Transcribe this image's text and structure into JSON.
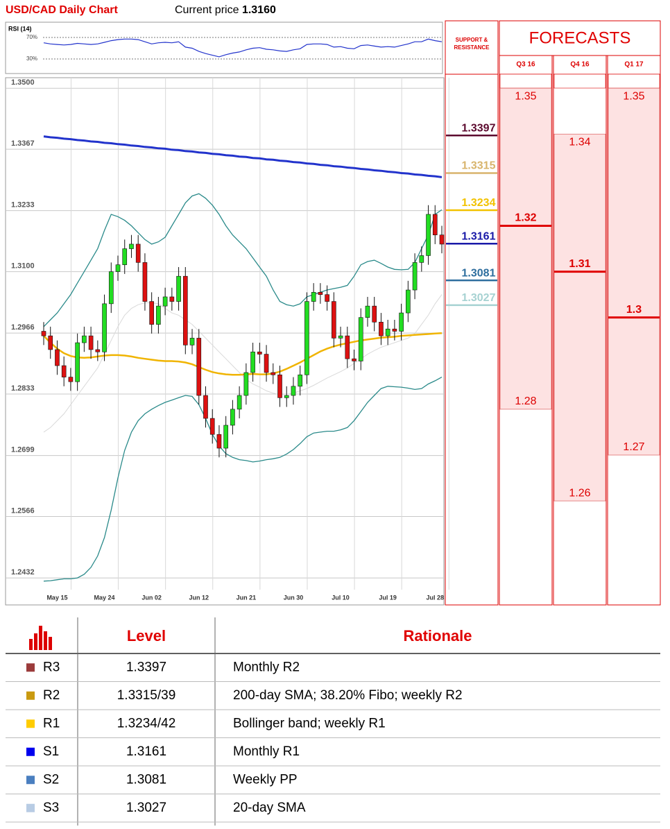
{
  "chart_data": [
    {
      "type": "candlestick",
      "title": "USD/CAD Daily Chart",
      "current_price_label": "Current price",
      "current_price": {
        "value": 1.316,
        "label": "1.3160"
      },
      "categories": [
        null,
        null,
        "May 15",
        null,
        null,
        null,
        null,
        null,
        null,
        "May 24",
        null,
        null,
        null,
        null,
        null,
        null,
        "Jun 02",
        null,
        null,
        null,
        null,
        null,
        null,
        "Jun 12",
        null,
        null,
        null,
        null,
        null,
        null,
        "Jun 21",
        null,
        null,
        null,
        null,
        null,
        null,
        "Jun 30",
        null,
        null,
        null,
        null,
        null,
        null,
        "Jul 10",
        null,
        null,
        null,
        null,
        null,
        null,
        "Jul 19",
        null,
        null,
        null,
        null,
        null,
        null,
        "Jul 28",
        null
      ],
      "open": [
        1.297,
        1.296,
        1.293,
        1.2895,
        1.287,
        1.286,
        1.2945,
        1.296,
        1.293,
        1.2925,
        1.303,
        1.31,
        1.3115,
        1.315,
        1.316,
        1.312,
        1.3035,
        1.2985,
        1.3025,
        1.3045,
        1.3035,
        1.309,
        1.294,
        1.2955,
        1.283,
        1.278,
        1.2745,
        1.2715,
        1.2765,
        1.28,
        1.283,
        1.288,
        1.2925,
        1.292,
        1.288,
        1.2875,
        1.2825,
        1.283,
        1.285,
        1.2875,
        1.3035,
        1.3055,
        1.305,
        1.3035,
        1.2955,
        1.296,
        1.291,
        1.2905,
        1.3,
        1.3025,
        1.299,
        1.296,
        1.2975,
        1.297,
        1.301,
        1.306,
        1.312,
        1.3135,
        1.3225,
        1.318
      ],
      "high": [
        1.299,
        1.298,
        1.295,
        1.2915,
        1.289,
        1.2965,
        1.298,
        1.298,
        1.295,
        1.305,
        1.312,
        1.3135,
        1.317,
        1.318,
        1.318,
        1.314,
        1.3055,
        1.3045,
        1.3065,
        1.3065,
        1.311,
        1.311,
        1.2975,
        1.2975,
        1.285,
        1.28,
        1.2765,
        1.2785,
        1.282,
        1.285,
        1.29,
        1.2945,
        1.2945,
        1.294,
        1.29,
        1.2895,
        1.285,
        1.287,
        1.2895,
        1.3055,
        1.3075,
        1.3075,
        1.307,
        1.3055,
        1.298,
        1.298,
        1.293,
        1.302,
        1.3045,
        1.3045,
        1.301,
        1.2995,
        1.2995,
        1.303,
        1.308,
        1.314,
        1.3155,
        1.3245,
        1.3245,
        1.32
      ],
      "low": [
        1.294,
        1.291,
        1.2875,
        1.285,
        1.284,
        1.284,
        1.2925,
        1.291,
        1.2905,
        1.2905,
        1.301,
        1.308,
        1.3095,
        1.313,
        1.31,
        1.3015,
        1.2965,
        1.2965,
        1.3005,
        1.3015,
        1.3015,
        1.292,
        1.292,
        1.281,
        1.276,
        1.2725,
        1.2695,
        1.2695,
        1.2745,
        1.278,
        1.281,
        1.286,
        1.29,
        1.286,
        1.2855,
        1.2805,
        1.2805,
        1.281,
        1.283,
        1.2855,
        1.3015,
        1.303,
        1.3015,
        1.2935,
        1.2935,
        1.289,
        1.2885,
        1.2885,
        1.298,
        1.297,
        1.294,
        1.294,
        1.295,
        1.295,
        1.299,
        1.304,
        1.31,
        1.3115,
        1.316,
        1.314
      ],
      "close": [
        1.296,
        1.293,
        1.2895,
        1.287,
        1.286,
        1.2945,
        1.296,
        1.293,
        1.2925,
        1.303,
        1.31,
        1.3115,
        1.315,
        1.316,
        1.312,
        1.3035,
        1.2985,
        1.3025,
        1.3045,
        1.3035,
        1.309,
        1.294,
        1.2955,
        1.283,
        1.278,
        1.2745,
        1.2715,
        1.2765,
        1.28,
        1.283,
        1.288,
        1.2925,
        1.292,
        1.288,
        1.2875,
        1.2825,
        1.283,
        1.285,
        1.2875,
        1.3035,
        1.3055,
        1.305,
        1.3035,
        1.2955,
        1.296,
        1.291,
        1.2905,
        1.3,
        1.3025,
        1.299,
        1.296,
        1.2975,
        1.297,
        1.301,
        1.306,
        1.312,
        1.3135,
        1.3225,
        1.318,
        1.316
      ],
      "up_color": "#22dd22",
      "down_color": "#dd1111",
      "lines": [
        {
          "color": "#d9d9d9",
          "values": [
            1.275,
            1.276,
            1.2775,
            1.279,
            1.281,
            1.283,
            1.285,
            1.287,
            1.289,
            1.292,
            1.295,
            1.298,
            1.3005,
            1.302,
            1.3028,
            1.3032,
            1.3032,
            1.303,
            1.302,
            1.301,
            1.3005,
            1.2995,
            1.2985,
            1.297,
            1.2955,
            1.294,
            1.2925,
            1.291,
            1.2895,
            1.288,
            1.2865,
            1.2855,
            1.2848,
            1.284,
            1.2835,
            1.2832,
            1.2833,
            1.2835,
            1.284,
            1.2845,
            1.2852,
            1.286,
            1.2868,
            1.2875,
            1.2882,
            1.289,
            1.29,
            1.291,
            1.292,
            1.2928,
            1.2935,
            1.294,
            1.2945,
            1.295,
            1.2955,
            1.2965,
            1.2985,
            1.3005,
            1.303,
            1.305
          ]
        },
        {
          "color": "#2a8a8a",
          "values": [
            1.298,
            1.2995,
            1.301,
            1.303,
            1.305,
            1.3075,
            1.31,
            1.3125,
            1.315,
            1.319,
            1.3225,
            1.322,
            1.3212,
            1.32,
            1.3185,
            1.317,
            1.316,
            1.3165,
            1.3175,
            1.32,
            1.3225,
            1.325,
            1.3265,
            1.327,
            1.326,
            1.3245,
            1.3225,
            1.32,
            1.318,
            1.3165,
            1.315,
            1.313,
            1.311,
            1.309,
            1.306,
            1.3035,
            1.3028,
            1.3025,
            1.303,
            1.3045,
            1.305,
            1.3055,
            1.306,
            1.3063,
            1.3066,
            1.307,
            1.309,
            1.3115,
            1.3122,
            1.3125,
            1.3118,
            1.311,
            1.3105,
            1.3104,
            1.3105,
            1.312,
            1.315,
            1.318,
            1.3225,
            1.3235
          ]
        },
        {
          "color": "#2a8a8a",
          "values": [
            1.2425,
            1.2426,
            1.2428,
            1.243,
            1.243,
            1.2432,
            1.244,
            1.2455,
            1.248,
            1.252,
            1.258,
            1.265,
            1.271,
            1.275,
            1.2775,
            1.279,
            1.28,
            1.2808,
            1.2815,
            1.282,
            1.2825,
            1.283,
            1.2828,
            1.281,
            1.278,
            1.2745,
            1.272,
            1.2703,
            1.2695,
            1.269,
            1.2688,
            1.2685,
            1.2687,
            1.269,
            1.2692,
            1.2695,
            1.2702,
            1.2712,
            1.2725,
            1.274,
            1.2748,
            1.275,
            1.2752,
            1.2752,
            1.2755,
            1.276,
            1.2775,
            1.2795,
            1.2815,
            1.283,
            1.2845,
            1.285,
            1.2849,
            1.2848,
            1.2846,
            1.2843,
            1.2845,
            1.2855,
            1.2862,
            1.287
          ]
        },
        {
          "color": "#2233cc",
          "values": [
            1.3395,
            1.3393,
            1.3392,
            1.339,
            1.3389,
            1.3387,
            1.3386,
            1.3384,
            1.3383,
            1.3381,
            1.338,
            1.3378,
            1.3377,
            1.3375,
            1.3374,
            1.3372,
            1.3371,
            1.3369,
            1.3368,
            1.3366,
            1.3365,
            1.3363,
            1.3362,
            1.336,
            1.3359,
            1.3357,
            1.3356,
            1.3354,
            1.3353,
            1.3351,
            1.335,
            1.3348,
            1.3347,
            1.3345,
            1.3344,
            1.3342,
            1.3341,
            1.3339,
            1.3338,
            1.3336,
            1.3335,
            1.3333,
            1.3332,
            1.333,
            1.3329,
            1.3327,
            1.3326,
            1.3324,
            1.3323,
            1.3321,
            1.332,
            1.3318,
            1.3317,
            1.3315,
            1.3314,
            1.3312,
            1.3311,
            1.3309,
            1.3308,
            1.3306
          ]
        },
        {
          "color": "#f0b400",
          "values": [
            1.296,
            1.2945,
            1.2932,
            1.2922,
            1.2916,
            1.2913,
            1.2912,
            1.2913,
            1.2915,
            1.2917,
            1.2918,
            1.2918,
            1.2917,
            1.2915,
            1.2912,
            1.291,
            1.2908,
            1.2906,
            1.2905,
            1.2905,
            1.2904,
            1.2902,
            1.2898,
            1.2892,
            1.2886,
            1.2881,
            1.2878,
            1.2876,
            1.2875,
            1.2875,
            1.2876,
            1.2877,
            1.2876,
            1.2876,
            1.2878,
            1.2882,
            1.2888,
            1.2895,
            1.2902,
            1.291,
            1.2918,
            1.2926,
            1.2932,
            1.2937,
            1.2941,
            1.2944,
            1.2947,
            1.295,
            1.2952,
            1.2954,
            1.2956,
            1.2957,
            1.2958,
            1.296,
            1.2961,
            1.2962,
            1.2963,
            1.2964,
            1.2965,
            1.2966
          ]
        }
      ],
      "ylim": [
        1.2414,
        1.3523
      ],
      "yticks": [
        {
          "value": 1.35,
          "label": "1.3500"
        },
        1.3367,
        1.3233,
        {
          "value": 1.31,
          "label": "1.3100"
        },
        1.2966,
        1.2833,
        1.2699,
        1.2566,
        1.2432
      ],
      "grid": true,
      "levels_title": "SUPPORT & RESISTANCE",
      "levels": [
        {
          "value": 1.3397,
          "color": "#5c0a2e"
        },
        {
          "value": 1.3315,
          "color": "#d8b46c"
        },
        {
          "value": 1.3234,
          "color": "#f2c200"
        },
        {
          "value": 1.3161,
          "color": "#1a1aa8"
        },
        {
          "value": 1.3081,
          "color": "#2e6e9e"
        },
        {
          "value": 1.3027,
          "color": "#a6d2d2"
        }
      ],
      "forecasts": {
        "title": "FORECASTS",
        "columns": [
          {
            "name": "Q3 16",
            "high": 1.35,
            "mid": 1.32,
            "low": 1.28
          },
          {
            "name": "Q4 16",
            "high": 1.34,
            "mid": 1.31,
            "low": 1.26
          },
          {
            "name": "Q1 17",
            "high": 1.35,
            "mid": 1.3,
            "low": 1.27
          }
        ]
      }
    },
    {
      "type": "line",
      "title": "RSI (14)",
      "color": "#2233cc",
      "values": [
        60,
        58,
        57,
        56,
        57,
        59,
        58,
        57,
        58,
        61,
        64,
        66,
        67,
        67,
        66,
        62,
        58,
        60,
        61,
        60,
        62,
        52,
        50,
        44,
        40,
        37,
        34,
        38,
        41,
        43,
        47,
        50,
        51,
        48,
        47,
        45,
        44,
        47,
        49,
        57,
        58,
        58,
        57,
        52,
        53,
        50,
        49,
        55,
        56,
        54,
        52,
        53,
        52,
        55,
        58,
        62,
        62,
        67,
        64,
        62
      ],
      "ylim": [
        15,
        90
      ],
      "yticks": [
        {
          "value": 70,
          "label": "70%"
        },
        {
          "value": 30,
          "label": "30%"
        }
      ]
    }
  ],
  "table": {
    "header": [
      "Level",
      "Rationale"
    ],
    "rows": [
      {
        "name": "R3",
        "level": "1.3397",
        "rationale": "Monthly R2",
        "color": "#9b3b3b"
      },
      {
        "name": "R2",
        "level": "1.3315/39",
        "rationale": "200-day SMA; 38.20% Fibo; weekly R2",
        "color": "#c99a10"
      },
      {
        "name": "R1",
        "level": "1.3234/42",
        "rationale": "Bollinger band; weekly R1",
        "color": "#ffcc00"
      },
      {
        "name": "S1",
        "level": "1.3161",
        "rationale": "Monthly R1",
        "color": "#0000ee"
      },
      {
        "name": "S2",
        "level": "1.3081",
        "rationale": "Weekly PP",
        "color": "#4a7fc0"
      },
      {
        "name": "S3",
        "level": "1.3027",
        "rationale": "20-day SMA",
        "color": "#b8cce4"
      }
    ]
  }
}
